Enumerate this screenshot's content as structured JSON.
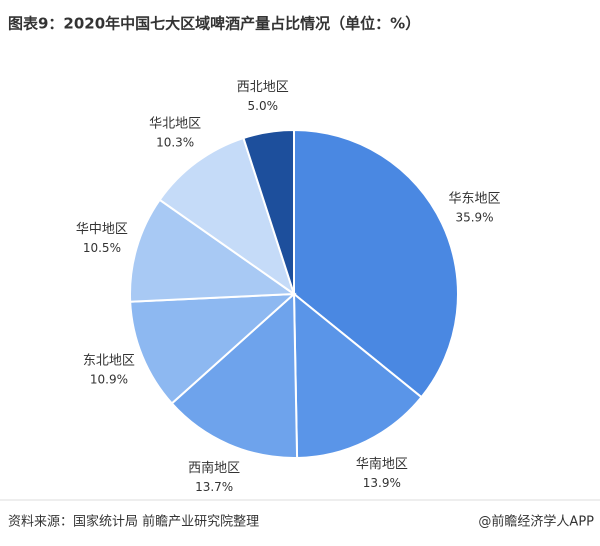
{
  "chart_data": {
    "type": "pie",
    "title": "图表9：2020年中国七大区域啤酒产量占比情况（单位：%）",
    "categories": [
      "华东地区",
      "华南地区",
      "西南地区",
      "东北地区",
      "华中地区",
      "华北地区",
      "西北地区"
    ],
    "values": [
      35.9,
      13.9,
      13.7,
      10.9,
      10.5,
      10.3,
      5
    ],
    "value_labels": [
      "35.9%",
      "13.9%",
      "13.7%",
      "10.9%",
      "10.5%",
      "10.3%",
      "5.0%"
    ],
    "colors": [
      "#4a88e2",
      "#5a95e8",
      "#6ea3ec",
      "#8db8f1",
      "#a8c9f4",
      "#c5dbf8",
      "#1d4f9c"
    ],
    "source": "资料来源：国家统计局 前瞻产业研究院整理",
    "credit": "@前瞻经济学人APP"
  }
}
